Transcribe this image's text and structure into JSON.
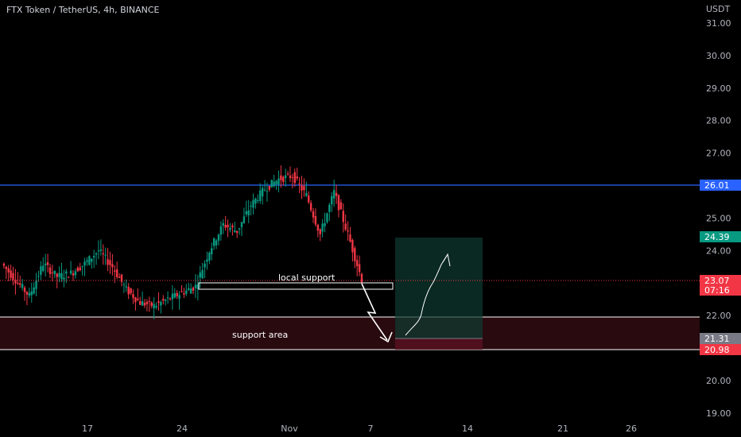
{
  "chart_data": {
    "type": "candlestick",
    "title": "FTX Token / TetherUS, 4h, BINANCE",
    "currency": "USDT",
    "y_ticks": [
      "31.00",
      "30.00",
      "29.00",
      "28.00",
      "27.00",
      "26.00",
      "25.00",
      "24.00",
      "23.00",
      "22.00",
      "21.00",
      "20.00",
      "19.00"
    ],
    "x_ticks": [
      "17",
      "24",
      "Nov",
      "7",
      "14",
      "21",
      "26"
    ],
    "ylim": [
      18.8,
      31.6
    ],
    "resistance": {
      "value": 26.01,
      "label": "26.01",
      "color": "#2962ff"
    },
    "support_area": {
      "top": 22.0,
      "bottom": 20.98,
      "label": "support area"
    },
    "local_support": {
      "label": "local support",
      "top": 22.92,
      "bottom": 22.72
    },
    "position": {
      "entry": 21.31,
      "target": 24.39,
      "stop": 20.98
    },
    "price_tags": [
      {
        "value": "26.01",
        "color": "#2962ff"
      },
      {
        "value": "24.39",
        "color": "#089981"
      },
      {
        "value": "23.07",
        "sub": "07:16",
        "color": "#f23645"
      },
      {
        "value": "21.31",
        "color": "#787b86"
      },
      {
        "value": "20.98",
        "color": "#f23645"
      }
    ],
    "last_price": 23.07,
    "colors": {
      "up": "#089981",
      "down": "#f23645",
      "background": "#000000"
    },
    "approx_close_path": [
      {
        "d": "Oct 11",
        "c": 23.6
      },
      {
        "d": "Oct 12",
        "c": 23.1
      },
      {
        "d": "Oct 13",
        "c": 22.6
      },
      {
        "d": "Oct 14",
        "c": 23.6
      },
      {
        "d": "Oct 15",
        "c": 23.2
      },
      {
        "d": "Oct 16",
        "c": 23.3
      },
      {
        "d": "Oct 17",
        "c": 23.6
      },
      {
        "d": "Oct 18",
        "c": 24.0
      },
      {
        "d": "Oct 19",
        "c": 23.5
      },
      {
        "d": "Oct 20",
        "c": 22.8
      },
      {
        "d": "Oct 21",
        "c": 22.4
      },
      {
        "d": "Oct 22",
        "c": 22.3
      },
      {
        "d": "Oct 23",
        "c": 22.5
      },
      {
        "d": "Oct 24",
        "c": 22.7
      },
      {
        "d": "Oct 25",
        "c": 22.9
      },
      {
        "d": "Oct 26",
        "c": 24.0
      },
      {
        "d": "Oct 27",
        "c": 24.8
      },
      {
        "d": "Oct 28",
        "c": 24.6
      },
      {
        "d": "Oct 29",
        "c": 25.4
      },
      {
        "d": "Oct 30",
        "c": 25.9
      },
      {
        "d": "Oct 31",
        "c": 26.2
      },
      {
        "d": "Nov 1",
        "c": 26.3
      },
      {
        "d": "Nov 2",
        "c": 25.7
      },
      {
        "d": "Nov 3",
        "c": 24.5
      },
      {
        "d": "Nov 4",
        "c": 25.8
      },
      {
        "d": "Nov 5",
        "c": 24.5
      },
      {
        "d": "Nov 6",
        "c": 23.1
      }
    ],
    "annotations": [
      "local support",
      "support area"
    ]
  }
}
